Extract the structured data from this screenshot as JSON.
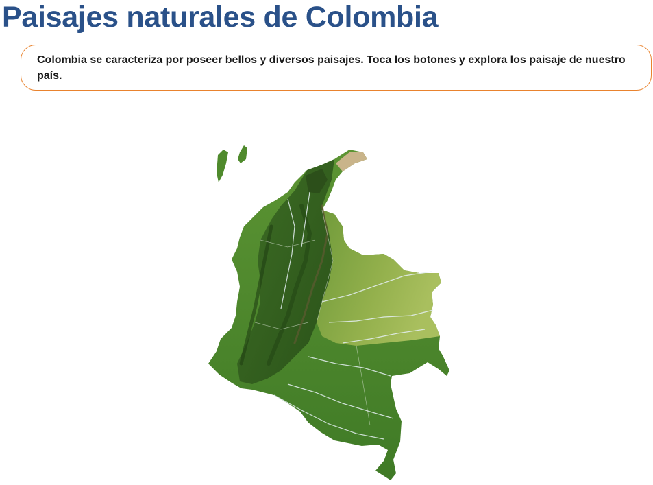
{
  "page": {
    "title": "Paisajes naturales de Colombia",
    "intro": "Colombia se caracteriza por poseer bellos y diversos paisajes.  Toca los botones y explora los paisaje de nuestro país."
  },
  "map": {
    "name": "colombia-relief-map",
    "colors": {
      "lowland": "#4e8a2e",
      "plains": "#8fae4a",
      "mountains": "#2f5a1e",
      "peaks": "#c9b48a",
      "rivers": "#e6f0f4"
    }
  }
}
